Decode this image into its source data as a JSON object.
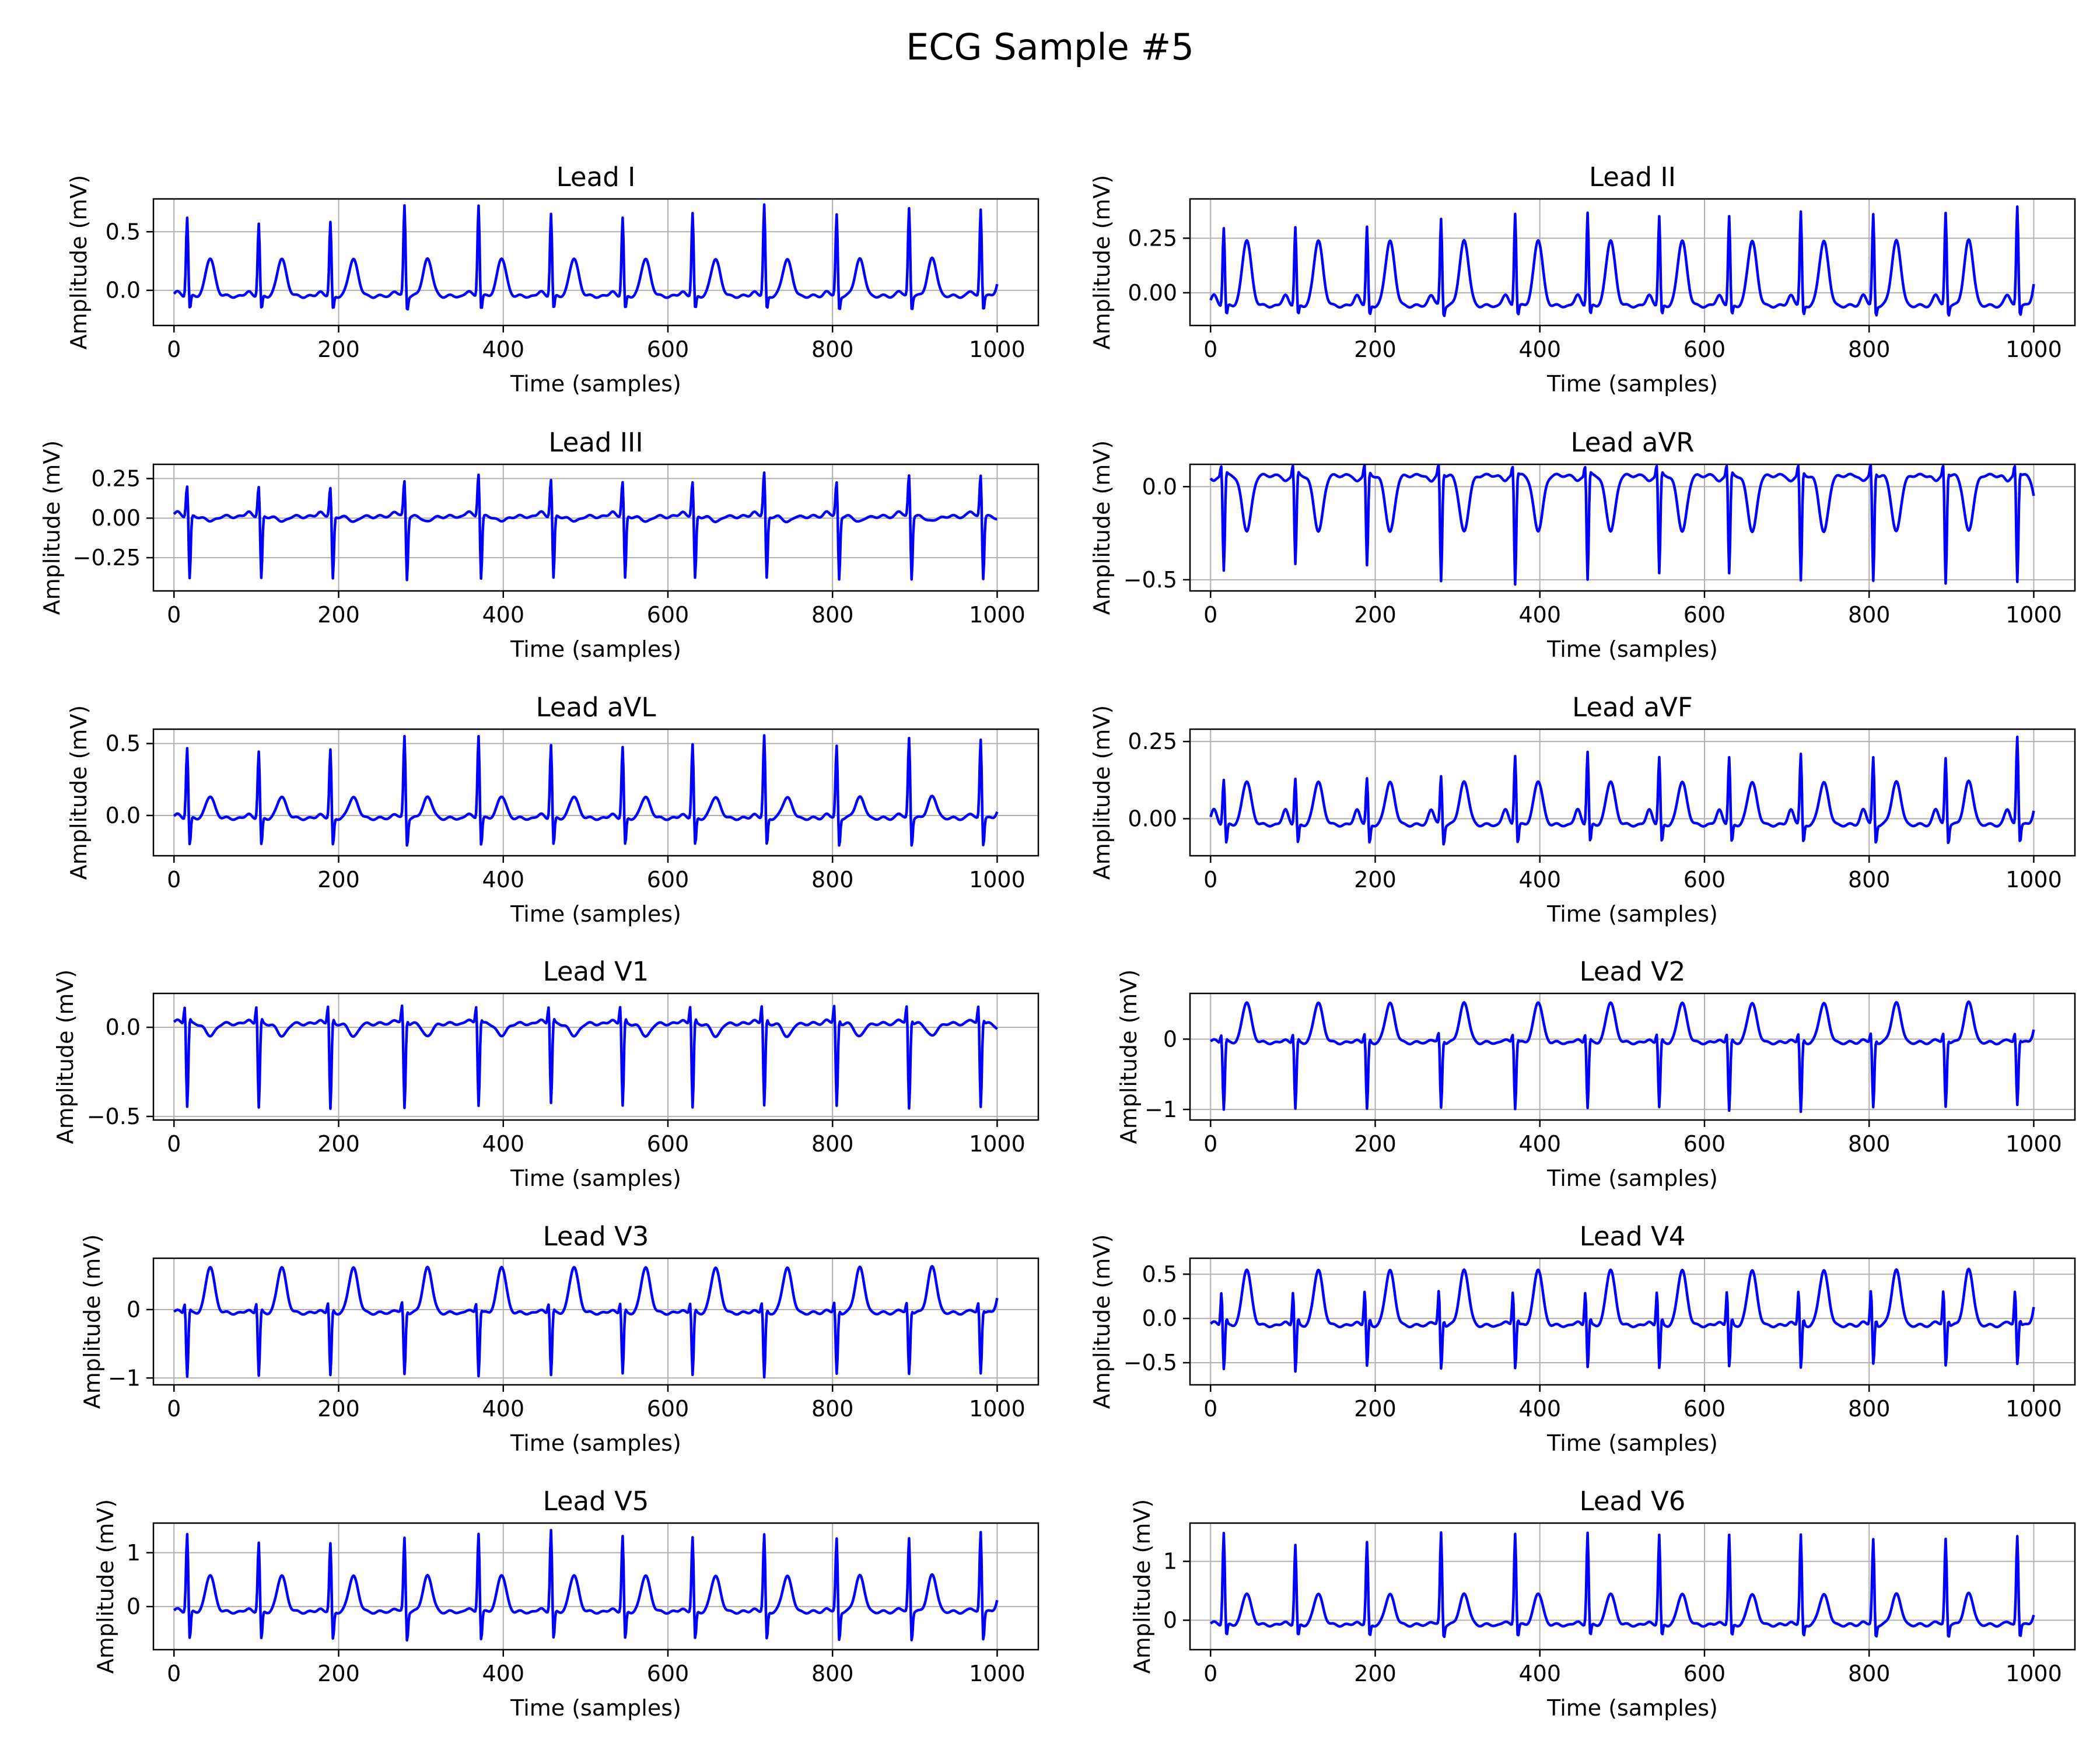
{
  "page_title": "ECG Sample #5",
  "colors": {
    "trace": "#0000ff",
    "grid": "#b0b0b0",
    "axes": "#000000",
    "background": "#ffffff"
  },
  "chart_data": [
    {
      "type": "line",
      "title": "Lead I",
      "xlabel": "Time (samples)",
      "ylabel": "Amplitude (mV)",
      "xlim": [
        -25,
        1050
      ],
      "ylim": [
        -0.3,
        0.78
      ],
      "xticks": [
        0,
        200,
        400,
        600,
        800,
        1000
      ],
      "yticks": [
        0.0,
        0.5
      ],
      "yticklabels": [
        "0.0",
        "0.5"
      ],
      "grid": true,
      "beat_samples": [
        16,
        103,
        190,
        280,
        370,
        458,
        545,
        630,
        717,
        805,
        893,
        980
      ],
      "beat_peaks": [
        0.63,
        0.57,
        0.58,
        0.73,
        0.74,
        0.66,
        0.62,
        0.66,
        0.73,
        0.65,
        0.71,
        0.7
      ],
      "shape": {
        "baseline": -0.05,
        "p": 0.04,
        "q": 0.0,
        "s": -0.2,
        "t": 0.27
      }
    },
    {
      "type": "line",
      "title": "Lead II",
      "xlabel": "Time (samples)",
      "ylabel": "Amplitude (mV)",
      "xlim": [
        -25,
        1050
      ],
      "ylim": [
        -0.15,
        0.43
      ],
      "xticks": [
        0,
        200,
        400,
        600,
        800,
        1000
      ],
      "yticks": [
        0.0,
        0.25
      ],
      "yticklabels": [
        "0.00",
        "0.25"
      ],
      "grid": true,
      "beat_samples": [
        16,
        103,
        190,
        280,
        370,
        458,
        545,
        630,
        717,
        805,
        893,
        980
      ],
      "beat_peaks": [
        0.3,
        0.3,
        0.3,
        0.34,
        0.37,
        0.37,
        0.35,
        0.35,
        0.37,
        0.36,
        0.37,
        0.4
      ],
      "shape": {
        "baseline": -0.06,
        "p": 0.05,
        "q": 0.0,
        "s": -0.12,
        "t": 0.24
      }
    },
    {
      "type": "line",
      "title": "Lead III",
      "xlabel": "Time (samples)",
      "ylabel": "Amplitude (mV)",
      "xlim": [
        -25,
        1050
      ],
      "ylim": [
        -0.46,
        0.34
      ],
      "xticks": [
        0,
        200,
        400,
        600,
        800,
        1000
      ],
      "yticks": [
        -0.25,
        0.0,
        0.25
      ],
      "yticklabels": [
        "−0.25",
        "0.00",
        "0.25"
      ],
      "grid": true,
      "beat_samples": [
        16,
        103,
        190,
        280,
        370,
        458,
        545,
        630,
        717,
        805,
        893,
        980
      ],
      "beat_peaks": [
        0.22,
        0.21,
        0.2,
        0.25,
        0.3,
        0.26,
        0.24,
        0.24,
        0.3,
        0.24,
        0.29,
        0.29
      ],
      "shape": {
        "baseline": 0.01,
        "p": 0.03,
        "q": 0.0,
        "s": -0.4,
        "t": -0.02
      }
    },
    {
      "type": "line",
      "title": "Lead aVR",
      "xlabel": "Time (samples)",
      "ylabel": "Amplitude (mV)",
      "xlim": [
        -25,
        1050
      ],
      "ylim": [
        -0.56,
        0.12
      ],
      "xticks": [
        0,
        200,
        400,
        600,
        800,
        1000
      ],
      "yticks": [
        -0.5,
        0.0
      ],
      "yticklabels": [
        "−0.5",
        "0.0"
      ],
      "grid": true,
      "beat_samples": [
        16,
        103,
        190,
        280,
        370,
        458,
        545,
        630,
        717,
        805,
        893,
        980
      ],
      "beat_peaks": [
        -0.46,
        -0.43,
        -0.44,
        -0.52,
        -0.53,
        -0.51,
        -0.48,
        -0.48,
        -0.52,
        -0.52,
        -0.53,
        -0.52
      ],
      "shape": {
        "baseline": 0.06,
        "p": -0.03,
        "q": 0.1,
        "s": 0.08,
        "t": -0.24
      }
    },
    {
      "type": "line",
      "title": "Lead aVL",
      "xlabel": "Time (samples)",
      "ylabel": "Amplitude (mV)",
      "xlim": [
        -25,
        1050
      ],
      "ylim": [
        -0.28,
        0.6
      ],
      "xticks": [
        0,
        200,
        400,
        600,
        800,
        1000
      ],
      "yticks": [
        0.0,
        0.5
      ],
      "yticklabels": [
        "0.0",
        "0.5"
      ],
      "grid": true,
      "beat_samples": [
        16,
        103,
        190,
        280,
        370,
        458,
        545,
        630,
        717,
        805,
        893,
        980
      ],
      "beat_peaks": [
        0.48,
        0.45,
        0.46,
        0.56,
        0.57,
        0.5,
        0.48,
        0.5,
        0.56,
        0.49,
        0.55,
        0.54
      ],
      "shape": {
        "baseline": -0.02,
        "p": 0.03,
        "q": 0.0,
        "s": -0.24,
        "t": 0.13
      }
    },
    {
      "type": "line",
      "title": "Lead aVF",
      "xlabel": "Time (samples)",
      "ylabel": "Amplitude (mV)",
      "xlim": [
        -25,
        1050
      ],
      "ylim": [
        -0.12,
        0.29
      ],
      "xticks": [
        0,
        200,
        400,
        600,
        800,
        1000
      ],
      "yticks": [
        0.0,
        0.25
      ],
      "yticklabels": [
        "0.00",
        "0.25"
      ],
      "grid": true,
      "beat_samples": [
        16,
        103,
        190,
        280,
        370,
        458,
        545,
        630,
        717,
        805,
        893,
        980
      ],
      "beat_peaks": [
        0.13,
        0.13,
        0.13,
        0.14,
        0.21,
        0.22,
        0.2,
        0.2,
        0.21,
        0.2,
        0.2,
        0.27
      ],
      "shape": {
        "baseline": -0.02,
        "p": 0.05,
        "q": 0.0,
        "s": -0.09,
        "t": 0.12
      }
    },
    {
      "type": "line",
      "title": "Lead V1",
      "xlabel": "Time (samples)",
      "ylabel": "Amplitude (mV)",
      "xlim": [
        -25,
        1050
      ],
      "ylim": [
        -0.52,
        0.19
      ],
      "xticks": [
        0,
        200,
        400,
        600,
        800,
        1000
      ],
      "yticks": [
        -0.5,
        0.0
      ],
      "yticklabels": [
        "−0.5",
        "0.0"
      ],
      "grid": true,
      "beat_samples": [
        16,
        103,
        190,
        280,
        370,
        458,
        545,
        630,
        717,
        805,
        893,
        980
      ],
      "beat_peaks": [
        -0.46,
        -0.47,
        -0.48,
        -0.47,
        -0.45,
        -0.44,
        -0.46,
        -0.47,
        -0.46,
        -0.46,
        -0.47,
        -0.46
      ],
      "shape": {
        "baseline": 0.02,
        "p": 0.02,
        "q": 0.14,
        "s": 0.05,
        "t": -0.05
      }
    },
    {
      "type": "line",
      "title": "Lead V2",
      "xlabel": "Time (samples)",
      "ylabel": "Amplitude (mV)",
      "xlim": [
        -25,
        1050
      ],
      "ylim": [
        -1.15,
        0.65
      ],
      "xticks": [
        0,
        200,
        400,
        600,
        800,
        1000
      ],
      "yticks": [
        -1,
        0
      ],
      "yticklabels": [
        "−1",
        "0"
      ],
      "grid": true,
      "beat_samples": [
        16,
        103,
        190,
        280,
        370,
        458,
        545,
        630,
        717,
        805,
        893,
        980
      ],
      "beat_peaks": [
        -1.02,
        -1.02,
        -1.03,
        -1.0,
        -1.0,
        -1.0,
        -1.0,
        -1.05,
        -1.07,
        -1.0,
        -0.98,
        -0.95
      ],
      "shape": {
        "baseline": -0.05,
        "p": 0.04,
        "q": 0.2,
        "s": 0.0,
        "t": 0.52
      }
    },
    {
      "type": "line",
      "title": "Lead V3",
      "xlabel": "Time (samples)",
      "ylabel": "Amplitude (mV)",
      "xlim": [
        -25,
        1050
      ],
      "ylim": [
        -1.1,
        0.75
      ],
      "xticks": [
        0,
        200,
        400,
        600,
        800,
        1000
      ],
      "yticks": [
        -1,
        0
      ],
      "yticklabels": [
        "−1",
        "0"
      ],
      "grid": true,
      "beat_samples": [
        16,
        103,
        190,
        280,
        370,
        458,
        545,
        630,
        717,
        805,
        893,
        980
      ],
      "beat_peaks": [
        -1.0,
        -1.0,
        -1.0,
        -0.97,
        -0.98,
        -0.98,
        -0.97,
        -0.99,
        -1.03,
        -0.97,
        -0.96,
        -0.95
      ],
      "shape": {
        "baseline": -0.05,
        "p": 0.04,
        "q": 0.22,
        "s": 0.0,
        "t": 0.62
      }
    },
    {
      "type": "line",
      "title": "Lead V4",
      "xlabel": "Time (samples)",
      "ylabel": "Amplitude (mV)",
      "xlim": [
        -25,
        1050
      ],
      "ylim": [
        -0.75,
        0.68
      ],
      "xticks": [
        0,
        200,
        400,
        600,
        800,
        1000
      ],
      "yticks": [
        -0.5,
        0.0,
        0.5
      ],
      "yticklabels": [
        "−0.5",
        "0.0",
        "0.5"
      ],
      "grid": true,
      "beat_samples": [
        16,
        103,
        190,
        280,
        370,
        458,
        545,
        630,
        717,
        805,
        893,
        980
      ],
      "beat_peaks": [
        -0.62,
        -0.66,
        -0.6,
        -0.62,
        -0.6,
        -0.6,
        -0.62,
        -0.6,
        -0.62,
        -0.57,
        -0.58,
        -0.56
      ],
      "shape": {
        "baseline": -0.08,
        "p": 0.04,
        "q": 0.45,
        "s": 0.0,
        "t": 0.55
      }
    },
    {
      "type": "line",
      "title": "Lead V5",
      "xlabel": "Time (samples)",
      "ylabel": "Amplitude (mV)",
      "xlim": [
        -25,
        1050
      ],
      "ylim": [
        -0.8,
        1.55
      ],
      "xticks": [
        0,
        200,
        400,
        600,
        800,
        1000
      ],
      "yticks": [
        0,
        1
      ],
      "yticklabels": [
        "0",
        "1"
      ],
      "grid": true,
      "beat_samples": [
        16,
        103,
        190,
        280,
        370,
        458,
        545,
        630,
        717,
        805,
        893,
        980
      ],
      "beat_peaks": [
        1.38,
        1.2,
        1.18,
        1.3,
        1.4,
        1.45,
        1.32,
        1.3,
        1.35,
        1.28,
        1.3,
        1.42
      ],
      "shape": {
        "baseline": -0.1,
        "p": 0.06,
        "q": 0.0,
        "s": -0.7,
        "t": 0.58
      }
    },
    {
      "type": "line",
      "title": "Lead V6",
      "xlabel": "Time (samples)",
      "ylabel": "Amplitude (mV)",
      "xlim": [
        -25,
        1050
      ],
      "ylim": [
        -0.5,
        1.65
      ],
      "xticks": [
        0,
        200,
        400,
        600,
        800,
        1000
      ],
      "yticks": [
        0,
        1
      ],
      "yticklabels": [
        "0",
        "1"
      ],
      "grid": true,
      "beat_samples": [
        16,
        103,
        190,
        280,
        370,
        458,
        545,
        630,
        717,
        805,
        893,
        980
      ],
      "beat_peaks": [
        1.5,
        1.28,
        1.32,
        1.5,
        1.5,
        1.5,
        1.45,
        1.45,
        1.45,
        1.38,
        1.4,
        1.45
      ],
      "shape": {
        "baseline": -0.08,
        "p": 0.05,
        "q": 0.0,
        "s": -0.35,
        "t": 0.45
      }
    }
  ]
}
